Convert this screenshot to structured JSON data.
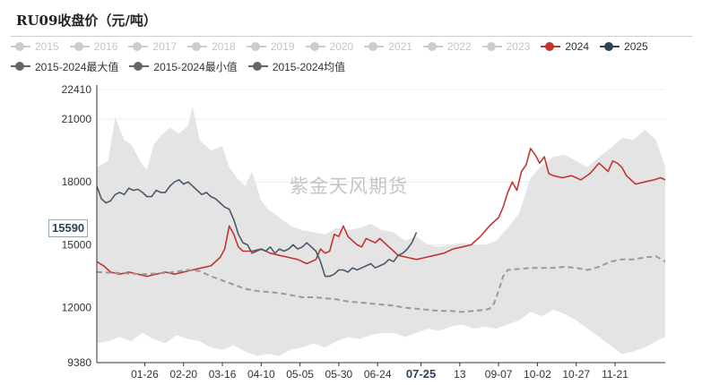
{
  "title": "RU09收盘价（元/吨）",
  "watermark": "紫金天风期货",
  "current_value_label": "15590",
  "legend": {
    "row1": [
      {
        "label": "2015",
        "color": "#cccccc",
        "active": false
      },
      {
        "label": "2016",
        "color": "#cccccc",
        "active": false
      },
      {
        "label": "2017",
        "color": "#cccccc",
        "active": false
      },
      {
        "label": "2018",
        "color": "#cccccc",
        "active": false
      },
      {
        "label": "2019",
        "color": "#cccccc",
        "active": false
      },
      {
        "label": "2020",
        "color": "#cccccc",
        "active": false
      },
      {
        "label": "2021",
        "color": "#cccccc",
        "active": false
      },
      {
        "label": "2022",
        "color": "#cccccc",
        "active": false
      },
      {
        "label": "2023",
        "color": "#cccccc",
        "active": false
      },
      {
        "label": "2024",
        "color": "#c23531",
        "active": true
      },
      {
        "label": "2025",
        "color": "#2f4554",
        "active": true
      }
    ],
    "row2": [
      {
        "label": "2015-2024最大值",
        "color": "#666666",
        "active": true
      },
      {
        "label": "2015-2024最小值",
        "color": "#666666",
        "active": true
      },
      {
        "label": "2015-2024均值",
        "color": "#666666",
        "active": true
      }
    ]
  },
  "chart_data": {
    "type": "line",
    "title": "RU09收盘价（元/吨）",
    "ylim": [
      9380,
      22410
    ],
    "y_ticks": [
      9380,
      12000,
      15000,
      18000,
      21000,
      22410
    ],
    "x_tick_labels": [
      "01-26",
      "02-20",
      "03-16",
      "04-10",
      "05-05",
      "05-30",
      "06-24",
      "07-25",
      "13",
      "09-07",
      "10-02",
      "10-27",
      "11-21"
    ],
    "highlighted_x_label": "07-25",
    "current_value": 15590,
    "x_axis_note": "trading-day index 0-249 spanning one calendar year",
    "colors": {
      "y2024": "#c23531",
      "y2025": "#4a5a6a",
      "mean": "#9a9a9a",
      "band": "#e4e4e4"
    },
    "band_max": {
      "x": [
        0,
        5,
        8,
        12,
        15,
        20,
        22,
        25,
        28,
        32,
        36,
        40,
        42,
        45,
        50,
        55,
        58,
        62,
        65,
        68,
        72,
        75,
        80,
        85,
        90,
        95,
        100,
        105,
        110,
        115,
        120,
        125,
        130,
        135,
        140,
        145,
        150,
        155,
        160,
        165,
        170,
        175,
        180,
        185,
        190,
        195,
        200,
        205,
        210,
        215,
        220,
        225,
        230,
        235,
        240,
        245,
        249
      ],
      "y": [
        18700,
        19000,
        21100,
        20000,
        19800,
        18800,
        18600,
        19800,
        20200,
        20600,
        20300,
        20700,
        21600,
        20000,
        19500,
        19700,
        18700,
        18100,
        17800,
        18500,
        17100,
        16700,
        16300,
        15900,
        15700,
        15600,
        15500,
        15800,
        15700,
        15800,
        16000,
        15700,
        15600,
        15200,
        15400,
        15000,
        14900,
        15000,
        15100,
        15000,
        15000,
        15200,
        15800,
        16500,
        18200,
        18800,
        19200,
        19300,
        19000,
        18700,
        19200,
        19600,
        20100,
        20000,
        20500,
        20000,
        18700
      ]
    },
    "band_min": {
      "x": [
        0,
        5,
        10,
        15,
        20,
        25,
        30,
        35,
        40,
        45,
        50,
        55,
        60,
        65,
        70,
        75,
        80,
        85,
        90,
        95,
        100,
        105,
        110,
        115,
        120,
        125,
        130,
        135,
        140,
        145,
        150,
        155,
        160,
        165,
        170,
        175,
        180,
        185,
        190,
        195,
        200,
        205,
        210,
        215,
        220,
        225,
        230,
        235,
        240,
        245,
        249
      ],
      "y": [
        10300,
        10400,
        10600,
        10400,
        10800,
        10500,
        10300,
        10700,
        10500,
        10400,
        10100,
        10000,
        10200,
        9900,
        9700,
        9800,
        9700,
        10000,
        10100,
        10300,
        10100,
        10400,
        10600,
        10500,
        10700,
        10800,
        10800,
        10600,
        10800,
        11000,
        10900,
        11100,
        11200,
        11000,
        11100,
        11000,
        11200,
        11400,
        11800,
        11600,
        11900,
        11700,
        11400,
        11000,
        10600,
        10200,
        9800,
        9900,
        10100,
        10400,
        10600
      ]
    },
    "series": [
      {
        "name": "2024",
        "x": [
          0,
          3,
          6,
          10,
          14,
          18,
          22,
          26,
          30,
          34,
          38,
          42,
          46,
          50,
          54,
          56,
          58,
          60,
          62,
          64,
          68,
          72,
          76,
          80,
          84,
          88,
          92,
          96,
          98,
          100,
          102,
          104,
          106,
          108,
          110,
          112,
          114,
          116,
          118,
          120,
          122,
          124,
          126,
          128,
          130,
          132,
          136,
          140,
          144,
          148,
          152,
          156,
          160,
          164,
          168,
          172,
          176,
          178,
          180,
          182,
          184,
          186,
          188,
          190,
          192,
          194,
          196,
          198,
          200,
          204,
          208,
          212,
          216,
          220,
          224,
          226,
          228,
          230,
          232,
          236,
          240,
          244,
          247,
          249
        ],
        "y": [
          14200,
          14000,
          13700,
          13600,
          13700,
          13600,
          13500,
          13600,
          13700,
          13600,
          13700,
          13800,
          13900,
          14000,
          14400,
          14800,
          15900,
          15500,
          14900,
          14700,
          14700,
          14800,
          14600,
          14500,
          14400,
          14300,
          14100,
          14300,
          14800,
          14600,
          14700,
          15500,
          15400,
          15900,
          15400,
          15200,
          15000,
          14900,
          15300,
          15200,
          15100,
          15300,
          15100,
          14900,
          14700,
          14500,
          14400,
          14300,
          14400,
          14500,
          14600,
          14800,
          14900,
          15000,
          15400,
          15900,
          16300,
          16800,
          17500,
          18000,
          17600,
          18500,
          18800,
          19600,
          19300,
          18900,
          19200,
          18400,
          18300,
          18200,
          18300,
          18100,
          18400,
          18900,
          18500,
          19000,
          18900,
          18700,
          18300,
          17900,
          18000,
          18100,
          18200,
          18100
        ]
      },
      {
        "name": "2025",
        "x": [
          0,
          2,
          4,
          6,
          8,
          10,
          12,
          14,
          16,
          18,
          20,
          22,
          24,
          26,
          28,
          30,
          32,
          34,
          36,
          38,
          40,
          42,
          44,
          46,
          48,
          50,
          52,
          54,
          56,
          58,
          60,
          62,
          64,
          66,
          68,
          70,
          72,
          74,
          76,
          78,
          80,
          82,
          84,
          86,
          88,
          90,
          92,
          94,
          96,
          98,
          100,
          102,
          104,
          106,
          108,
          110,
          112,
          114,
          116,
          118,
          120,
          122,
          124,
          126,
          128,
          130,
          132,
          134,
          136,
          138,
          140
        ],
        "y": [
          17800,
          17200,
          17000,
          17100,
          17400,
          17500,
          17400,
          17700,
          17600,
          17650,
          17500,
          17300,
          17300,
          17600,
          17500,
          17500,
          17800,
          18000,
          18100,
          17900,
          18000,
          17800,
          17600,
          17400,
          17500,
          17300,
          17200,
          17000,
          16800,
          16700,
          16200,
          15500,
          15100,
          15000,
          14600,
          14700,
          14800,
          14700,
          14900,
          14600,
          14800,
          14700,
          14800,
          15000,
          14800,
          14900,
          15100,
          14900,
          14700,
          14200,
          13500,
          13500,
          13600,
          13800,
          13800,
          13700,
          13900,
          13800,
          13900,
          14000,
          14100,
          13900,
          14000,
          14100,
          14300,
          14200,
          14500,
          14600,
          14800,
          15100,
          15590
        ]
      },
      {
        "name": "2015-2024均值",
        "x": [
          0,
          10,
          20,
          30,
          40,
          45,
          50,
          55,
          60,
          65,
          70,
          75,
          80,
          85,
          90,
          95,
          100,
          105,
          110,
          115,
          120,
          125,
          130,
          135,
          140,
          145,
          150,
          155,
          160,
          165,
          170,
          172,
          174,
          176,
          178,
          180,
          185,
          190,
          195,
          200,
          205,
          210,
          215,
          220,
          225,
          230,
          235,
          240,
          245,
          249
        ],
        "y": [
          13700,
          13650,
          13600,
          13650,
          13800,
          13750,
          13500,
          13300,
          13100,
          12900,
          12800,
          12750,
          12700,
          12600,
          12500,
          12500,
          12450,
          12400,
          12300,
          12250,
          12200,
          12150,
          12100,
          12000,
          11950,
          11900,
          11850,
          11850,
          11800,
          11850,
          11900,
          11950,
          12200,
          12800,
          13500,
          13800,
          13850,
          13900,
          13900,
          13900,
          13950,
          13900,
          13800,
          13950,
          14200,
          14300,
          14300,
          14400,
          14450,
          14200
        ]
      }
    ]
  }
}
